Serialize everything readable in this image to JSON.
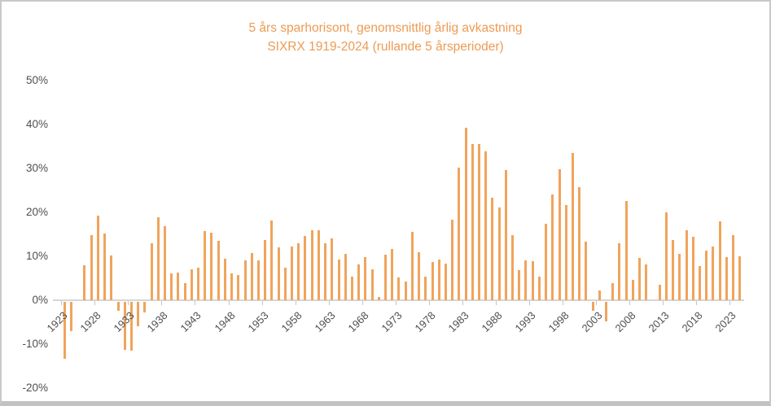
{
  "title": {
    "line1": "5 års sparhorisont, genomsnittlig årlig avkastning",
    "line2": "SIXRX 1919-2024 (rullande 5 årsperioder)"
  },
  "colors": {
    "bar": "#F0A45C",
    "title_text": "#ED9B54",
    "axis_text": "#4f4f4f",
    "axis_line": "#d6d6d6"
  },
  "chart_data": {
    "type": "bar",
    "title": "5 års sparhorisont, genomsnittlig årlig avkastning",
    "subtitle": "SIXRX 1919-2024 (rullande 5 årsperioder)",
    "xlabel": "",
    "ylabel": "",
    "unit": "%",
    "ylim": [
      -20,
      50
    ],
    "grid": false,
    "legend": "none",
    "y_ticks": [
      50,
      40,
      30,
      20,
      10,
      0,
      -10,
      -20
    ],
    "y_tick_suffix": "%",
    "x_tick_labels": [
      "1923",
      "1928",
      "1933",
      "1938",
      "1943",
      "1948",
      "1953",
      "1958",
      "1963",
      "1968",
      "1973",
      "1978",
      "1983",
      "1988",
      "1993",
      "1998",
      "2003",
      "2008",
      "2013",
      "2018",
      "2023"
    ],
    "years": [
      1923,
      1924,
      1925,
      1926,
      1927,
      1928,
      1929,
      1930,
      1931,
      1932,
      1933,
      1934,
      1935,
      1936,
      1937,
      1938,
      1939,
      1940,
      1941,
      1942,
      1943,
      1944,
      1945,
      1946,
      1947,
      1948,
      1949,
      1950,
      1951,
      1952,
      1953,
      1954,
      1955,
      1956,
      1957,
      1958,
      1959,
      1960,
      1961,
      1962,
      1963,
      1964,
      1965,
      1966,
      1967,
      1968,
      1969,
      1970,
      1971,
      1972,
      1973,
      1974,
      1975,
      1976,
      1977,
      1978,
      1979,
      1980,
      1981,
      1982,
      1983,
      1984,
      1985,
      1986,
      1987,
      1988,
      1989,
      1990,
      1991,
      1992,
      1993,
      1994,
      1995,
      1996,
      1997,
      1998,
      1999,
      2000,
      2001,
      2002,
      2003,
      2004,
      2005,
      2006,
      2007,
      2008,
      2009,
      2010,
      2011,
      2012,
      2013,
      2014,
      2015,
      2016,
      2017,
      2018,
      2019,
      2020,
      2021,
      2022,
      2023,
      2024
    ],
    "values": [
      -13.0,
      -6.7,
      0.0,
      8.0,
      14.8,
      19.3,
      15.2,
      10.2,
      -2.0,
      -11.0,
      -11.1,
      -5.6,
      -2.4,
      13.0,
      18.9,
      16.9,
      6.1,
      6.3,
      3.9,
      7.0,
      7.4,
      15.7,
      15.3,
      13.6,
      9.4,
      6.1,
      5.7,
      9.1,
      10.7,
      9.1,
      13.7,
      18.1,
      12.0,
      7.5,
      12.2,
      13.0,
      14.6,
      15.9,
      15.9,
      13.0,
      14.1,
      9.3,
      10.5,
      5.3,
      8.1,
      9.9,
      7.0,
      0.8,
      10.3,
      11.7,
      5.2,
      4.3,
      15.6,
      10.9,
      5.4,
      8.7,
      9.3,
      8.3,
      18.3,
      30.1,
      39.2,
      35.5,
      35.5,
      33.8,
      23.4,
      21.1,
      29.6,
      14.8,
      6.9,
      9.1,
      8.9,
      5.4,
      17.4,
      24.1,
      29.8,
      21.7,
      33.5,
      25.7,
      13.3,
      -2.1,
      2.2,
      -4.4,
      3.9,
      13.0,
      22.6,
      4.6,
      9.6,
      8.1,
      0.0,
      3.5,
      20.0,
      13.7,
      10.6,
      15.9,
      14.4,
      7.8,
      11.3,
      12.2,
      17.9,
      9.8,
      14.8,
      10.0
    ]
  }
}
